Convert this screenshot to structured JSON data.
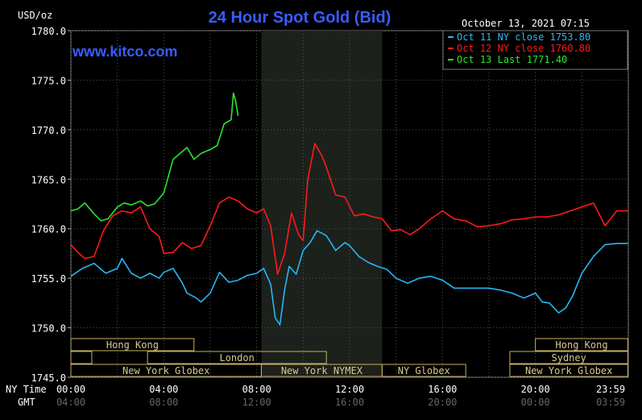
{
  "chart_data": {
    "type": "line",
    "title": "24 Hour Spot Gold (Bid)",
    "brand": "www.kitco.com",
    "unit_label": "USD/oz",
    "timestamp": "October 13, 2021 07:15",
    "ylim": [
      1745.0,
      1780.0
    ],
    "y_ticks": [
      "1780.0",
      "1775.0",
      "1770.0",
      "1765.0",
      "1760.0",
      "1755.0",
      "1750.0",
      "1745.0"
    ],
    "x_row_label_ny": "NY Time",
    "x_row_label_gmt": "GMT",
    "x_ticks_ny": [
      "00:00",
      "04:00",
      "08:00",
      "12:00",
      "16:00",
      "20:00",
      "23:59"
    ],
    "x_ticks_gmt": [
      "04:00",
      "08:00",
      "12:00",
      "16:00",
      "20:00",
      "00:00",
      "03:59"
    ],
    "x_hours": [
      0,
      4,
      8,
      12,
      16,
      20,
      23.983
    ],
    "xlim": [
      0,
      24
    ],
    "shaded_region_hours": [
      8.2,
      13.4
    ],
    "legend_position": "top-right",
    "series": [
      {
        "name": "Oct 11 NY close 1753.80",
        "color": "#29b6f6",
        "x": [
          0,
          0.5,
          1,
          1.5,
          2,
          2.2,
          2.6,
          3,
          3.4,
          3.8,
          4,
          4.4,
          4.8,
          5,
          5.4,
          5.6,
          6,
          6.4,
          6.8,
          7.2,
          7.6,
          8,
          8.3,
          8.6,
          8.8,
          9,
          9.2,
          9.4,
          9.7,
          10,
          10.3,
          10.6,
          11,
          11.4,
          11.8,
          12,
          12.4,
          12.8,
          13.2,
          13.6,
          14,
          14.5,
          15,
          15.5,
          16,
          16.5,
          17,
          17.5,
          18,
          18.5,
          19,
          19.5,
          20,
          20.3,
          20.6,
          21,
          21.3,
          21.6,
          22,
          22.5,
          23,
          23.5,
          23.98
        ],
        "y": [
          1755.2,
          1756.0,
          1756.5,
          1755.5,
          1756.0,
          1757.0,
          1755.5,
          1755.0,
          1755.5,
          1755.0,
          1755.6,
          1756.0,
          1754.5,
          1753.5,
          1753.0,
          1752.6,
          1753.5,
          1755.6,
          1754.6,
          1754.8,
          1755.3,
          1755.5,
          1756.0,
          1754.4,
          1751.0,
          1750.3,
          1753.8,
          1756.2,
          1755.4,
          1757.8,
          1758.6,
          1759.8,
          1759.3,
          1757.8,
          1758.6,
          1758.3,
          1757.2,
          1756.6,
          1756.2,
          1755.9,
          1755.0,
          1754.5,
          1755.0,
          1755.2,
          1754.8,
          1754.0,
          1754.0,
          1754.0,
          1754.0,
          1753.8,
          1753.5,
          1753.0,
          1753.5,
          1752.6,
          1752.5,
          1751.5,
          1752.0,
          1753.2,
          1755.5,
          1757.2,
          1758.4,
          1758.5,
          1758.5
        ]
      },
      {
        "name": "Oct 12 NY close 1760.80",
        "color": "#ff1a1a",
        "x": [
          0,
          0.3,
          0.6,
          1,
          1.4,
          1.8,
          2.2,
          2.6,
          3,
          3.4,
          3.8,
          4,
          4.4,
          4.8,
          5.2,
          5.6,
          6,
          6.4,
          6.8,
          7.2,
          7.6,
          8,
          8.3,
          8.6,
          8.9,
          9.2,
          9.5,
          9.8,
          10,
          10.2,
          10.5,
          10.8,
          11,
          11.4,
          11.8,
          12.2,
          12.6,
          13,
          13.4,
          13.8,
          14.2,
          14.6,
          15,
          15.5,
          16,
          16.5,
          17,
          17.5,
          18,
          18.5,
          19,
          19.5,
          20,
          20.5,
          21,
          21.5,
          22,
          22.5,
          23,
          23.5,
          23.98
        ],
        "y": [
          1758.4,
          1757.6,
          1757.0,
          1757.2,
          1759.8,
          1761.3,
          1761.8,
          1761.6,
          1762.2,
          1760.0,
          1759.2,
          1757.5,
          1757.6,
          1758.6,
          1758.0,
          1758.3,
          1760.3,
          1762.6,
          1763.2,
          1762.8,
          1762.0,
          1761.6,
          1762.0,
          1760.3,
          1755.4,
          1757.5,
          1761.6,
          1759.4,
          1758.8,
          1765.0,
          1768.6,
          1767.4,
          1766.2,
          1763.4,
          1763.2,
          1761.3,
          1761.5,
          1761.2,
          1761.0,
          1759.8,
          1759.9,
          1759.4,
          1760.0,
          1761.0,
          1761.8,
          1761.0,
          1760.8,
          1760.2,
          1760.3,
          1760.5,
          1760.9,
          1761.0,
          1761.2,
          1761.2,
          1761.4,
          1761.8,
          1762.2,
          1762.6,
          1760.3,
          1761.8,
          1761.8
        ]
      },
      {
        "name": "Oct 13 Last 1771.40",
        "color": "#29e62e",
        "x": [
          0,
          0.3,
          0.6,
          1,
          1.3,
          1.6,
          2,
          2.3,
          2.6,
          3,
          3.3,
          3.6,
          4,
          4.4,
          4.8,
          5,
          5.3,
          5.6,
          6,
          6.3,
          6.6,
          6.9,
          7,
          7.1,
          7.2
        ],
        "y": [
          1761.8,
          1762.0,
          1762.6,
          1761.5,
          1760.8,
          1761.0,
          1762.2,
          1762.6,
          1762.4,
          1762.8,
          1762.3,
          1762.5,
          1763.6,
          1767.0,
          1767.8,
          1768.2,
          1767.0,
          1767.6,
          1768.0,
          1768.4,
          1770.6,
          1771.0,
          1773.7,
          1772.8,
          1771.4
        ]
      }
    ],
    "sessions": [
      {
        "label": "Hong Kong",
        "row": 0,
        "start": 0,
        "end": 5.3
      },
      {
        "label": "Hong Kong",
        "row": 0,
        "start": 20.0,
        "end": 23.98
      },
      {
        "label": "",
        "row": 1,
        "start": 0,
        "end": 0.9
      },
      {
        "label": "London",
        "row": 1,
        "start": 3.3,
        "end": 11.0
      },
      {
        "label": "Sydney",
        "row": 1,
        "start": 18.9,
        "end": 23.98
      },
      {
        "label": "New York Globex",
        "row": 2,
        "start": 0,
        "end": 8.2
      },
      {
        "label": "New York NYMEX",
        "row": 2,
        "start": 8.2,
        "end": 13.4
      },
      {
        "label": "NY Globex",
        "row": 2,
        "start": 13.4,
        "end": 17.0
      },
      {
        "label": "New York Globex",
        "row": 2,
        "start": 18.9,
        "end": 23.98
      }
    ]
  }
}
